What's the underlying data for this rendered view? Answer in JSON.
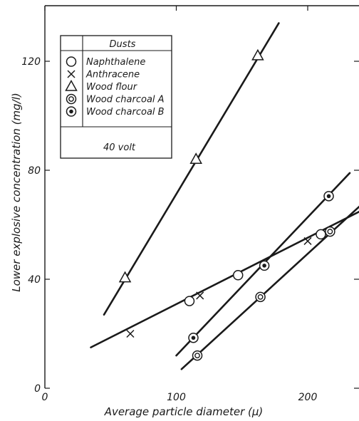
{
  "chart_data": {
    "type": "scatter",
    "xlabel": "Average particle diameter  (μ)",
    "ylabel": "Lower explosive concentration  (mg/l)",
    "x_ticks": [
      0,
      100,
      200
    ],
    "y_ticks": [
      0,
      40,
      80,
      120
    ],
    "xlim": [
      0,
      240
    ],
    "ylim": [
      0,
      136
    ],
    "legend": {
      "title": "Dusts",
      "note": "40 volt",
      "placement": "top-left"
    },
    "series": [
      {
        "name": "Naphthalene",
        "marker": "circle",
        "points": [
          [
            110,
            32
          ],
          [
            147,
            41.5
          ],
          [
            210,
            56.5
          ]
        ],
        "line": [
          [
            35,
            15
          ],
          [
            240,
            65
          ]
        ]
      },
      {
        "name": "Anthracene",
        "marker": "cross",
        "points": [
          [
            65,
            20
          ],
          [
            118,
            34
          ],
          [
            200,
            54
          ]
        ]
      },
      {
        "name": "Wood flour",
        "marker": "triangle",
        "points": [
          [
            61,
            40.5
          ],
          [
            115,
            84
          ],
          [
            162,
            122
          ]
        ],
        "line": [
          [
            45,
            27
          ],
          [
            178,
            134
          ]
        ]
      },
      {
        "name": "Wood charcoal A",
        "marker": "double-circle",
        "points": [
          [
            116,
            12
          ],
          [
            164,
            33.5
          ],
          [
            217,
            57.5
          ]
        ],
        "line": [
          [
            104,
            7
          ],
          [
            240,
            67
          ]
        ]
      },
      {
        "name": "Wood charcoal B",
        "marker": "dotted-circle",
        "points": [
          [
            113,
            18.5
          ],
          [
            167,
            45
          ],
          [
            216,
            70.5
          ]
        ],
        "line": [
          [
            100,
            12
          ],
          [
            232,
            79
          ]
        ]
      }
    ]
  }
}
